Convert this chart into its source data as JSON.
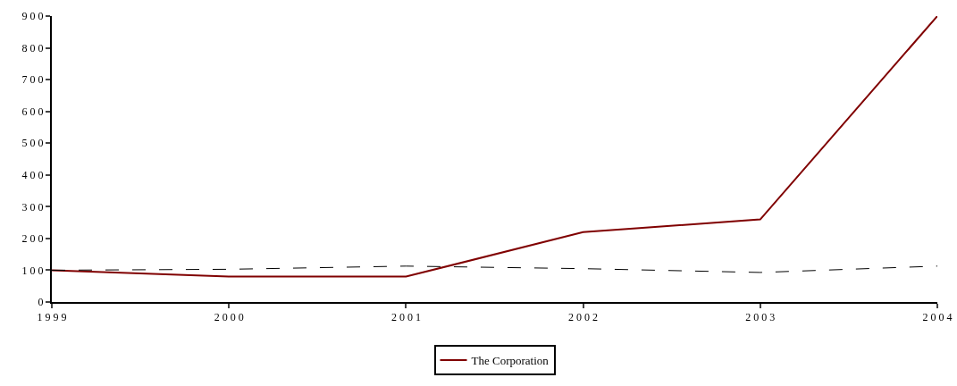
{
  "chart_data": {
    "type": "line",
    "x": [
      1999,
      2000,
      2001,
      2002,
      2003,
      2004
    ],
    "series": [
      {
        "name": "The Corporation",
        "color": "#800000",
        "values": [
          100,
          80,
          80,
          220,
          260,
          900
        ],
        "line_style": "solid"
      },
      {
        "color": "#000000",
        "values": [
          100,
          103,
          113,
          105,
          93,
          113
        ],
        "line_style": "dashed"
      }
    ],
    "xlim": [
      1999,
      2004
    ],
    "xticks": [
      1999,
      2000,
      2001,
      2002,
      2003,
      2004
    ],
    "ylim": [
      0,
      900
    ],
    "yticks": [
      0,
      100,
      200,
      300,
      400,
      500,
      600,
      700,
      800,
      900
    ],
    "grid": false,
    "legend": "bottom",
    "marker": "none"
  }
}
